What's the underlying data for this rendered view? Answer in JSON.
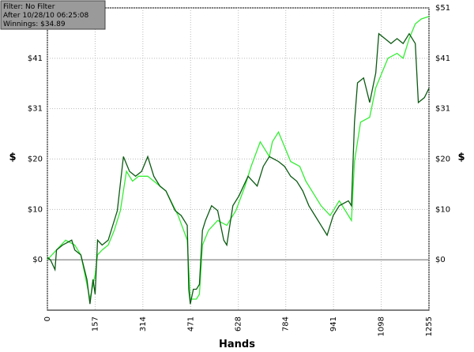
{
  "chart_data": {
    "type": "line",
    "info": [
      "Filter: No Filter",
      "After 10/28/10 06:25:08",
      "Winnings: $34.89"
    ],
    "xlabel": "Hands",
    "ylabel": "$",
    "xlim": [
      0,
      1255
    ],
    "xticks": [
      0,
      157,
      314,
      471,
      628,
      784,
      941,
      1098,
      1255
    ],
    "ylim": [
      -10.25,
      51.25
    ],
    "yticks": [
      {
        "value": 0,
        "label": "$0"
      },
      {
        "value": 10.25,
        "label": "$10"
      },
      {
        "value": 20.5,
        "label": "$20"
      },
      {
        "value": 30.75,
        "label": "$31"
      },
      {
        "value": 41,
        "label": "$41"
      },
      {
        "value": 51.25,
        "label": "$51"
      }
    ],
    "grid": true,
    "series": [
      {
        "color": "#33ee33",
        "x": [
          0,
          30,
          60,
          90,
          110,
          140,
          157,
          165,
          180,
          200,
          220,
          240,
          260,
          280,
          300,
          330,
          350,
          390,
          430,
          460,
          470,
          490,
          500,
          510,
          530,
          560,
          590,
          620,
          650,
          670,
          700,
          730,
          740,
          760,
          780,
          800,
          830,
          850,
          880,
          900,
          930,
          960,
          990,
          1000,
          1010,
          1030,
          1060,
          1080,
          1100,
          1120,
          1150,
          1170,
          1190,
          1210,
          1230,
          1255
        ],
        "values": [
          0,
          2,
          4,
          3,
          1,
          -8,
          -3,
          1,
          2,
          3,
          6,
          10,
          18,
          16,
          17,
          17,
          16,
          14,
          9,
          4,
          -8,
          -8,
          -7,
          3,
          6,
          8,
          7,
          10,
          15,
          19,
          24,
          21,
          24,
          26,
          23,
          20,
          19,
          16,
          13,
          11,
          9,
          12,
          9,
          8,
          20,
          28,
          29,
          35,
          38,
          41,
          42,
          41,
          45,
          48,
          49,
          49.5
        ]
      },
      {
        "color": "#0b5a12",
        "x": [
          0,
          10,
          25,
          30,
          50,
          80,
          90,
          110,
          130,
          140,
          150,
          157,
          165,
          180,
          200,
          230,
          250,
          270,
          290,
          310,
          330,
          350,
          370,
          390,
          420,
          440,
          460,
          465,
          470,
          480,
          490,
          500,
          510,
          520,
          540,
          560,
          580,
          590,
          610,
          630,
          660,
          690,
          710,
          730,
          760,
          780,
          800,
          820,
          840,
          860,
          880,
          900,
          920,
          940,
          960,
          990,
          1000,
          1010,
          1020,
          1040,
          1060,
          1080,
          1090,
          1110,
          1130,
          1150,
          1170,
          1190,
          1210,
          1220,
          1240,
          1255
        ],
        "values": [
          0.5,
          0,
          -2,
          2,
          3,
          4,
          2,
          1,
          -4,
          -9,
          -4,
          -7,
          4,
          3,
          4,
          10,
          21,
          18,
          17,
          18,
          21,
          17,
          15,
          14,
          10,
          9,
          7,
          -6,
          -9,
          -6,
          -6,
          -5,
          6,
          8,
          11,
          10,
          4,
          3,
          11,
          13,
          17,
          15,
          19,
          21,
          20,
          19,
          17,
          16,
          14,
          11,
          9,
          7,
          5,
          9,
          11,
          12,
          11,
          28,
          36,
          37,
          32,
          38,
          46,
          45,
          44,
          45,
          44,
          46,
          44,
          32,
          33,
          34.89
        ]
      }
    ]
  }
}
